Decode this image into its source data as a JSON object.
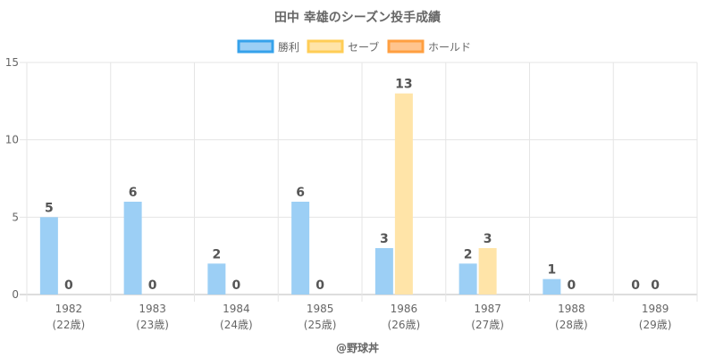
{
  "chart_data": {
    "type": "bar",
    "title": "田中 幸雄のシーズン投手成績",
    "categories": [
      [
        "1982",
        "(22歳)"
      ],
      [
        "1983",
        "(23歳)"
      ],
      [
        "1984",
        "(24歳)"
      ],
      [
        "1985",
        "(25歳)"
      ],
      [
        "1986",
        "(26歳)"
      ],
      [
        "1987",
        "(27歳)"
      ],
      [
        "1988",
        "(28歳)"
      ],
      [
        "1989",
        "(29歳)"
      ]
    ],
    "series": [
      {
        "name": "勝利",
        "values": [
          5,
          6,
          2,
          6,
          3,
          2,
          1,
          0
        ],
        "fill": "#9ccff5",
        "border": "#36a2eb",
        "label_nonzero_only": false
      },
      {
        "name": "セーブ",
        "values": [
          0,
          0,
          0,
          0,
          13,
          3,
          0,
          0
        ],
        "fill": "#ffe4a8",
        "border": "#ffcd56",
        "label_nonzero_only": false
      },
      {
        "name": "ホールド",
        "values": [
          0,
          0,
          0,
          0,
          0,
          0,
          0,
          0
        ],
        "fill": "#ffc48e",
        "border": "#ff9f40",
        "label_nonzero_only": true
      }
    ],
    "ylim": [
      0,
      15
    ],
    "yticks": [
      0,
      5,
      10,
      15
    ],
    "grid": true,
    "legend_position": "top-center",
    "xlabel": "@野球丼",
    "ylabel": ""
  }
}
